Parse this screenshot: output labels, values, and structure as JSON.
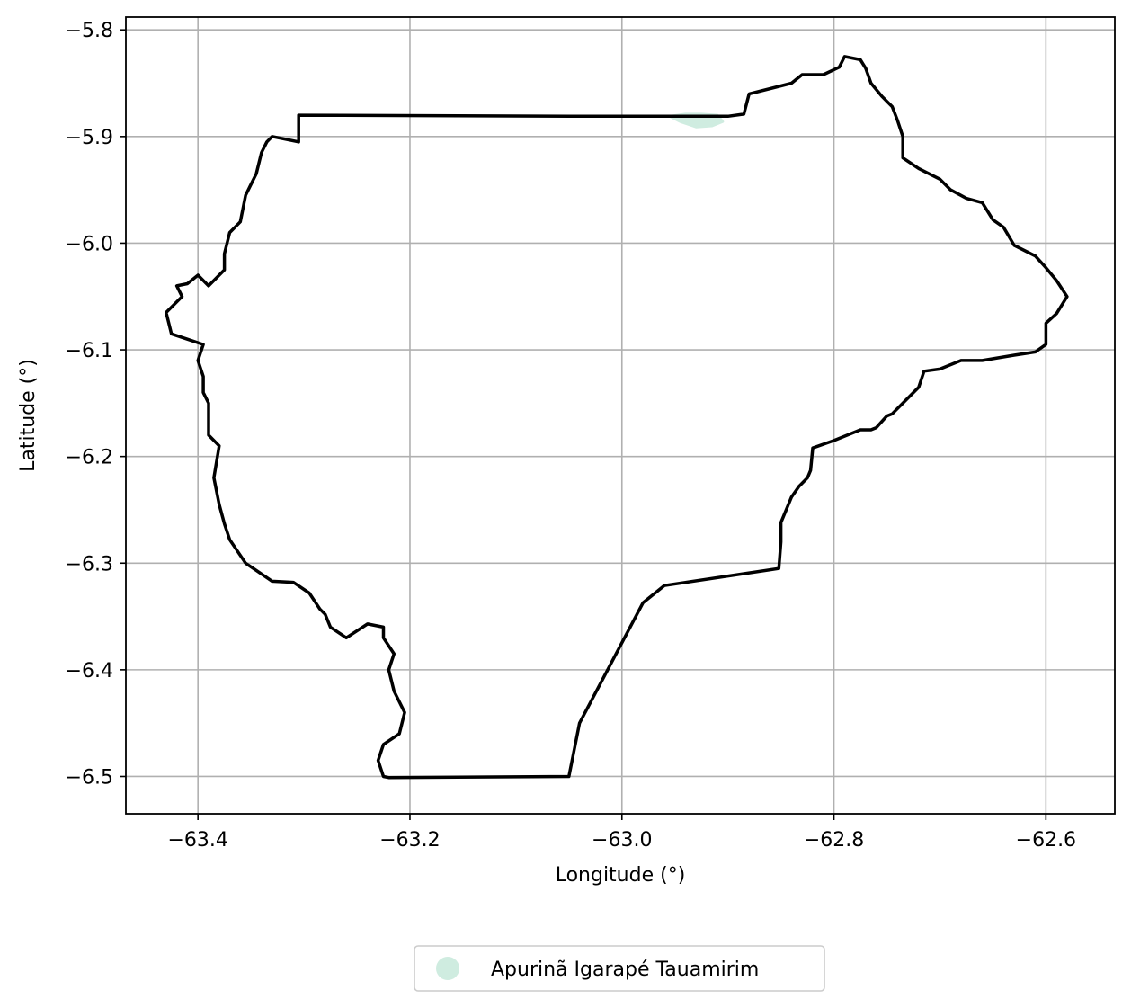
{
  "chart_data": {
    "type": "map",
    "xlabel": "Longitude (°)",
    "ylabel": "Latitude (°)",
    "xlim": [
      -63.468,
      -62.535
    ],
    "ylim": [
      -6.535,
      -5.788
    ],
    "grid": true,
    "xticks": [
      -63.4,
      -63.2,
      -63.0,
      -62.8,
      -62.6
    ],
    "xtick_labels": [
      "−63.4",
      "−63.2",
      "−63.0",
      "−62.8",
      "−62.6"
    ],
    "yticks": [
      -5.8,
      -5.9,
      -6.0,
      -6.1,
      -6.2,
      -6.3,
      -6.4,
      -6.5
    ],
    "ytick_labels": [
      "−5.8",
      "−5.9",
      "−6.0",
      "−6.1",
      "−6.2",
      "−6.3",
      "−6.4",
      "−6.5"
    ],
    "legend_position": "bottom-center",
    "legend": [
      {
        "label": "Apurinã Igarapé Tauamirim",
        "color": "#cfece0"
      }
    ],
    "territory_patch": {
      "color": "#cfece0",
      "lon": [
        -62.955,
        -62.94,
        -62.925,
        -62.91,
        -62.905,
        -62.915,
        -62.93,
        -62.945
      ],
      "lat": [
        -5.881,
        -5.879,
        -5.879,
        -5.88,
        -5.886,
        -5.89,
        -5.891,
        -5.886
      ]
    },
    "boundary": {
      "color": "#000000",
      "lon": [
        -63.305,
        -63.05,
        -62.9,
        -62.885,
        -62.88,
        -62.86,
        -62.84,
        -62.83,
        -62.81,
        -62.795,
        -62.79,
        -62.775,
        -62.77,
        -62.765,
        -62.755,
        -62.745,
        -62.74,
        -62.735,
        -62.735,
        -62.72,
        -62.7,
        -62.69,
        -62.675,
        -62.66,
        -62.65,
        -62.64,
        -62.63,
        -62.61,
        -62.6,
        -62.59,
        -62.58,
        -62.59,
        -62.6,
        -62.6,
        -62.61,
        -62.63,
        -62.66,
        -62.68,
        -62.7,
        -62.715,
        -62.72,
        -62.735,
        -62.745,
        -62.75,
        -62.76,
        -62.765,
        -62.775,
        -62.8,
        -62.82,
        -62.822,
        -62.825,
        -62.833,
        -62.84,
        -62.85,
        -62.85,
        -62.852,
        -62.96,
        -62.98,
        -63.04,
        -63.05,
        -63.22,
        -63.225,
        -63.23,
        -63.225,
        -63.21,
        -63.205,
        -63.215,
        -63.22,
        -63.215,
        -63.225,
        -63.225,
        -63.24,
        -63.26,
        -63.275,
        -63.28,
        -63.285,
        -63.295,
        -63.31,
        -63.33,
        -63.355,
        -63.37,
        -63.375,
        -63.38,
        -63.385,
        -63.38,
        -63.39,
        -63.39,
        -63.395,
        -63.395,
        -63.4,
        -63.395,
        -63.41,
        -63.425,
        -63.43,
        -63.415,
        -63.42,
        -63.41,
        -63.4,
        -63.39,
        -63.375,
        -63.375,
        -63.37,
        -63.36,
        -63.355,
        -63.35,
        -63.345,
        -63.34,
        -63.335,
        -63.33,
        -63.32,
        -63.305,
        -63.305
      ],
      "lat": [
        -5.88,
        -5.881,
        -5.881,
        -5.879,
        -5.86,
        -5.855,
        -5.85,
        -5.842,
        -5.842,
        -5.835,
        -5.825,
        -5.828,
        -5.836,
        -5.85,
        -5.862,
        -5.872,
        -5.885,
        -5.9,
        -5.92,
        -5.93,
        -5.94,
        -5.95,
        -5.958,
        -5.962,
        -5.978,
        -5.985,
        -6.002,
        -6.012,
        -6.023,
        -6.035,
        -6.05,
        -6.066,
        -6.075,
        -6.095,
        -6.102,
        -6.105,
        -6.11,
        -6.11,
        -6.118,
        -6.12,
        -6.135,
        -6.15,
        -6.16,
        -6.162,
        -6.173,
        -6.175,
        -6.175,
        -6.185,
        -6.192,
        -6.213,
        -6.22,
        -6.228,
        -6.238,
        -6.262,
        -6.28,
        -6.305,
        -6.321,
        -6.337,
        -6.45,
        -6.5,
        -6.501,
        -6.5,
        -6.485,
        -6.47,
        -6.46,
        -6.44,
        -6.42,
        -6.4,
        -6.385,
        -6.37,
        -6.36,
        -6.357,
        -6.37,
        -6.36,
        -6.348,
        -6.343,
        -6.328,
        -6.318,
        -6.317,
        -6.3,
        -6.278,
        -6.263,
        -6.245,
        -6.22,
        -6.19,
        -6.18,
        -6.15,
        -6.14,
        -6.125,
        -6.11,
        -6.095,
        -6.09,
        -6.085,
        -6.065,
        -6.05,
        -6.04,
        -6.038,
        -6.03,
        -6.04,
        -6.025,
        -6.01,
        -5.99,
        -5.98,
        -5.955,
        -5.945,
        -5.935,
        -5.915,
        -5.905,
        -5.9,
        -5.902,
        -5.905,
        -5.88
      ]
    }
  }
}
